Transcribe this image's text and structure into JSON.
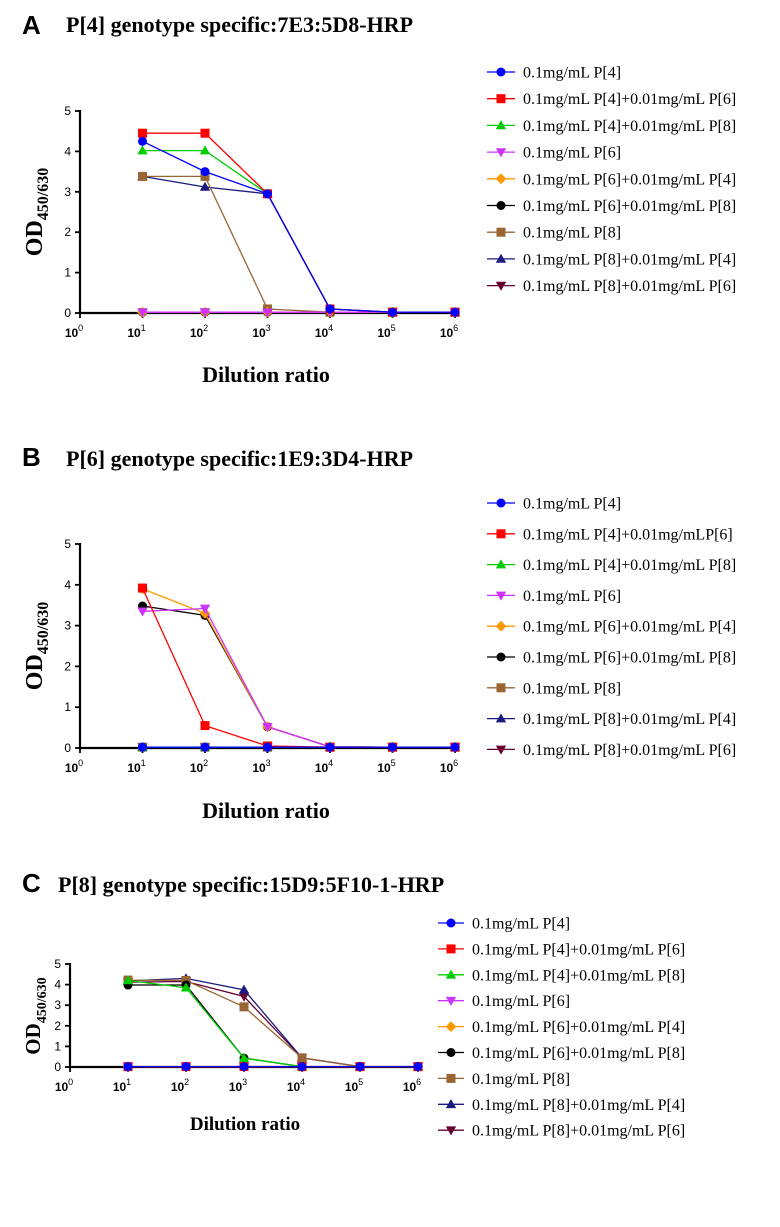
{
  "chart_data": [
    {
      "type": "line",
      "panel_letter": "A",
      "title": "P[4] genotype specific:7E3:5D8-HRP",
      "xlabel": "Dilution ratio",
      "ylabel_main": "OD",
      "ylabel_sub": "450/630",
      "xscale": "log",
      "xlim": [
        1,
        1000000
      ],
      "ylim": [
        0,
        5
      ],
      "x": [
        10,
        100,
        1000,
        10000,
        100000,
        1000000
      ],
      "xtick_exponents": [
        "0",
        "1",
        "2",
        "3",
        "4",
        "5",
        "6"
      ],
      "yticks": [
        "0",
        "1",
        "2",
        "3",
        "4",
        "5"
      ],
      "legend_position": "right",
      "series": [
        {
          "name": "0.1mg/mL P[4]",
          "color": "#0000ff",
          "marker": "circle",
          "values": [
            4.25,
            3.5,
            2.95,
            0.1,
            0.02,
            0.02
          ]
        },
        {
          "name": "0.1mg/mL P[4]+0.01mg/mL P[6]",
          "color": "#ff0000",
          "marker": "square",
          "values": [
            4.45,
            4.45,
            2.95,
            0.1,
            0.02,
            0.02
          ]
        },
        {
          "name": "0.1mg/mL P[4]+0.01mg/mL P[8]",
          "color": "#00cc00",
          "marker": "triangle-up",
          "values": [
            4.02,
            4.02,
            2.95,
            0.1,
            0.02,
            0.02
          ]
        },
        {
          "name": "0.1mg/mL P[6]",
          "color": "#cc33ff",
          "marker": "triangle-down",
          "values": [
            0.02,
            0.02,
            0.02,
            0.02,
            0.02,
            0.02
          ]
        },
        {
          "name": "0.1mg/mL P[6]+0.01mg/mL P[4]",
          "color": "#ff9900",
          "marker": "diamond",
          "values": [
            0.02,
            0.02,
            0.02,
            0.02,
            0.02,
            0.02
          ]
        },
        {
          "name": "0.1mg/mL P[6]+0.01mg/mL P[8]",
          "color": "#000000",
          "marker": "circle",
          "values": [
            0.02,
            0.02,
            0.02,
            0.02,
            0.02,
            0.02
          ]
        },
        {
          "name": "0.1mg/mL P[8]",
          "color": "#996633",
          "marker": "square",
          "values": [
            3.38,
            3.38,
            0.1,
            0.02,
            0.02,
            0.02
          ]
        },
        {
          "name": "0.1mg/mL P[8]+0.01mg/mL P[4]",
          "color": "#1a1a80",
          "marker": "triangle-up",
          "values": [
            3.38,
            3.12,
            2.95,
            0.1,
            0.02,
            0.02
          ]
        },
        {
          "name": "0.1mg/mL P[8]+0.01mg/mL P[6]",
          "color": "#660033",
          "marker": "triangle-down",
          "values": [
            0.02,
            0.02,
            0.02,
            0.02,
            0.02,
            0.02
          ]
        }
      ]
    },
    {
      "type": "line",
      "panel_letter": "B",
      "title": "P[6] genotype specific:1E9:3D4-HRP",
      "xlabel": "Dilution ratio",
      "ylabel_main": "OD",
      "ylabel_sub": "450/630",
      "xscale": "log",
      "xlim": [
        1,
        1000000
      ],
      "ylim": [
        0,
        5
      ],
      "x": [
        10,
        100,
        1000,
        10000,
        100000,
        1000000
      ],
      "xtick_exponents": [
        "0",
        "1",
        "2",
        "3",
        "4",
        "5",
        "6"
      ],
      "yticks": [
        "0",
        "1",
        "2",
        "3",
        "4",
        "5"
      ],
      "legend_position": "right",
      "series": [
        {
          "name": "0.1mg/mL P[4]",
          "color": "#0000ff",
          "marker": "circle",
          "values": [
            0.02,
            0.02,
            0.02,
            0.02,
            0.02,
            0.02
          ]
        },
        {
          "name": "0.1mg/mL P[4]+0.01mg/mLP[6]",
          "color": "#ff0000",
          "marker": "square",
          "values": [
            3.92,
            0.55,
            0.05,
            0.02,
            0.02,
            0.02
          ]
        },
        {
          "name": "0.1mg/mL P[4]+0.01mg/mL P[8]",
          "color": "#00cc00",
          "marker": "triangle-up",
          "values": [
            0.02,
            0.02,
            0.02,
            0.02,
            0.02,
            0.02
          ]
        },
        {
          "name": "0.1mg/mL P[6]",
          "color": "#cc33ff",
          "marker": "triangle-down",
          "values": [
            3.35,
            3.42,
            0.52,
            0.03,
            0.02,
            0.02
          ]
        },
        {
          "name": "0.1mg/mL P[6]+0.01mg/mL P[4]",
          "color": "#ff9900",
          "marker": "diamond",
          "values": [
            3.9,
            3.3,
            0.52,
            0.03,
            0.02,
            0.02
          ]
        },
        {
          "name": "0.1mg/mL P[6]+0.01mg/mL P[8]",
          "color": "#000000",
          "marker": "circle",
          "values": [
            3.48,
            3.25,
            0.52,
            0.03,
            0.02,
            0.02
          ]
        },
        {
          "name": "0.1mg/mL P[8]",
          "color": "#996633",
          "marker": "square",
          "values": [
            0.02,
            0.02,
            0.02,
            0.02,
            0.02,
            0.02
          ]
        },
        {
          "name": "0.1mg/mL P[8]+0.01mg/mL P[4]",
          "color": "#1a1a80",
          "marker": "triangle-up",
          "values": [
            0.02,
            0.02,
            0.02,
            0.02,
            0.02,
            0.02
          ]
        },
        {
          "name": "0.1mg/mL P[8]+0.01mg/mL P[6]",
          "color": "#660033",
          "marker": "triangle-down",
          "values": [
            0.02,
            0.02,
            0.02,
            0.02,
            0.02,
            0.02
          ]
        }
      ]
    },
    {
      "type": "line",
      "panel_letter": "C",
      "title": "P[8] genotype specific:15D9:5F10-1-HRP",
      "xlabel": "Dilution ratio",
      "ylabel_main": "OD",
      "ylabel_sub": "450/630",
      "xscale": "log",
      "xlim": [
        1,
        1000000
      ],
      "ylim": [
        0,
        5
      ],
      "x": [
        10,
        100,
        1000,
        10000,
        100000,
        1000000
      ],
      "xtick_exponents": [
        "0",
        "1",
        "2",
        "3",
        "4",
        "5",
        "6"
      ],
      "yticks": [
        "0",
        "1",
        "2",
        "3",
        "4",
        "5"
      ],
      "legend_position": "right",
      "series": [
        {
          "name": "0.1mg/mL P[4]",
          "color": "#0000ff",
          "marker": "circle",
          "values": [
            0.02,
            0.02,
            0.02,
            0.02,
            0.02,
            0.02
          ]
        },
        {
          "name": "0.1mg/mL P[4]+0.01mg/mL P[6]",
          "color": "#ff0000",
          "marker": "square",
          "values": [
            0.02,
            0.02,
            0.02,
            0.02,
            0.02,
            0.02
          ]
        },
        {
          "name": "0.1mg/mL P[4]+0.01mg/mL P[8]",
          "color": "#00cc00",
          "marker": "triangle-up",
          "values": [
            4.2,
            3.85,
            0.43,
            0.02,
            0.02,
            0.02
          ]
        },
        {
          "name": "0.1mg/mL P[6]",
          "color": "#cc33ff",
          "marker": "triangle-down",
          "values": [
            0.02,
            0.02,
            0.02,
            0.02,
            0.02,
            0.02
          ]
        },
        {
          "name": "0.1mg/mL P[6]+0.01mg/mL P[4]",
          "color": "#ff9900",
          "marker": "diamond",
          "values": [
            0.02,
            0.02,
            0.02,
            0.02,
            0.02,
            0.02
          ]
        },
        {
          "name": "0.1mg/mL P[6]+0.01mg/mL P[8]",
          "color": "#000000",
          "marker": "circle",
          "values": [
            3.98,
            3.98,
            0.43,
            0.02,
            0.02,
            0.02
          ]
        },
        {
          "name": "0.1mg/mL P[8]",
          "color": "#996633",
          "marker": "square",
          "values": [
            4.22,
            4.2,
            2.92,
            0.44,
            0.02,
            0.02
          ]
        },
        {
          "name": "0.1mg/mL P[8]+0.01mg/mL P[4]",
          "color": "#1a1a80",
          "marker": "triangle-up",
          "values": [
            4.18,
            4.3,
            3.75,
            0.44,
            0.02,
            0.02
          ]
        },
        {
          "name": "0.1mg/mL P[8]+0.01mg/mL P[6]",
          "color": "#660033",
          "marker": "triangle-down",
          "values": [
            4.12,
            4.15,
            3.42,
            0.44,
            0.02,
            0.02
          ]
        }
      ]
    }
  ]
}
